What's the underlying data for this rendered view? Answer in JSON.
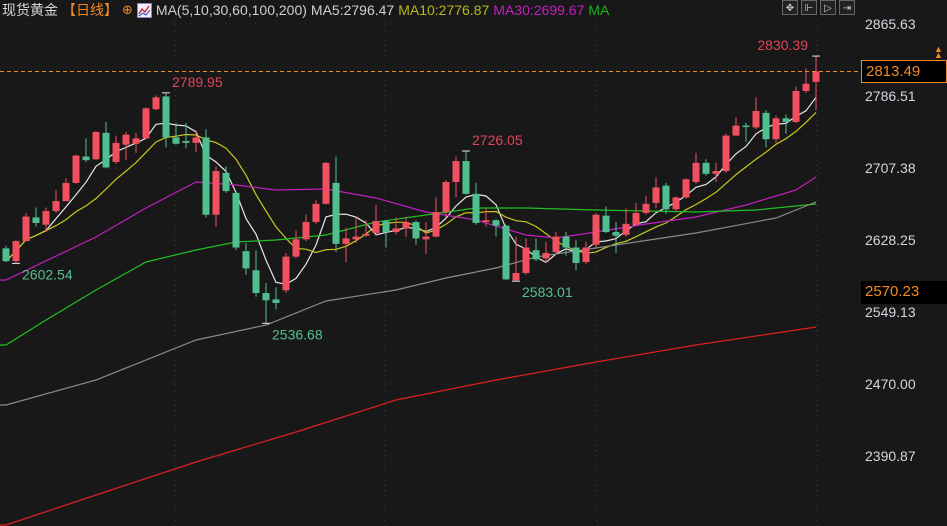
{
  "header": {
    "instrument": "现货黄金",
    "period": "【日线】",
    "add_icon": "circle-plus-icon",
    "ma_icon": "line-chart-icon",
    "ma_params": "MA(5,10,30,60,100,200)",
    "ma5": "MA5:2796.47",
    "ma10": "MA10:2776.87",
    "ma30": "MA30:2699.67",
    "ma60": "MA"
  },
  "toolbar": [
    {
      "icon": "crosshair-icon",
      "glyph": "✥"
    },
    {
      "icon": "zoom-range-icon",
      "glyph": "⊩"
    },
    {
      "icon": "play-icon",
      "glyph": "▷"
    },
    {
      "icon": "move-right-icon",
      "glyph": "⇥"
    }
  ],
  "price_labels": {
    "current": "2813.49",
    "secondary": "2570.23"
  },
  "colors": {
    "background": "#181818",
    "up": "#f0505f",
    "down": "#4fbf8f",
    "ma5": "#e6e6e6",
    "ma10": "#c8c820",
    "ma30": "#c020c0",
    "ma60": "#20c020",
    "ma100": "#8a8a8a",
    "ma200": "#e02020",
    "current_line": "#f08a24"
  },
  "chart_data": {
    "type": "candlestick",
    "title": "",
    "y_ticks": [
      2865.63,
      2786.51,
      2707.38,
      2628.25,
      2549.13,
      2470.0,
      2390.87
    ],
    "ylim": [
      2390.87,
      2865.63
    ],
    "grid": true,
    "current_price": 2813.49,
    "secondary_price": 2570.23,
    "candles": [
      [
        2619,
        2622,
        2604,
        2605
      ],
      [
        2605,
        2628,
        2602.54,
        2627
      ],
      [
        2627,
        2658,
        2627,
        2654
      ],
      [
        2653,
        2664,
        2643,
        2647
      ],
      [
        2645,
        2664,
        2637,
        2660
      ],
      [
        2660,
        2683,
        2658,
        2671
      ],
      [
        2671,
        2696,
        2671,
        2691
      ],
      [
        2691,
        2722,
        2690,
        2721
      ],
      [
        2720,
        2740,
        2714,
        2716
      ],
      [
        2717,
        2748,
        2716,
        2747
      ],
      [
        2746,
        2758,
        2707,
        2708
      ],
      [
        2714,
        2743,
        2712,
        2735
      ],
      [
        2733,
        2747,
        2716,
        2744
      ],
      [
        2734,
        2746,
        2724,
        2740
      ],
      [
        2740,
        2774,
        2739,
        2773
      ],
      [
        2772,
        2787,
        2771,
        2785
      ],
      [
        2786,
        2789.95,
        2730,
        2741
      ],
      [
        2741,
        2757,
        2733,
        2734
      ],
      [
        2737,
        2757,
        2729,
        2735
      ],
      [
        2735,
        2749,
        2725,
        2741
      ],
      [
        2741,
        2750,
        2653,
        2656
      ],
      [
        2656,
        2709,
        2643,
        2704
      ],
      [
        2702,
        2709,
        2680,
        2682
      ],
      [
        2680,
        2680,
        2617,
        2620
      ],
      [
        2616,
        2625,
        2590,
        2597
      ],
      [
        2595,
        2617,
        2566,
        2570
      ],
      [
        2570,
        2581,
        2536.68,
        2562
      ],
      [
        2563,
        2576,
        2552,
        2559
      ],
      [
        2573,
        2614,
        2570,
        2610
      ],
      [
        2610,
        2639,
        2608,
        2629
      ],
      [
        2629,
        2656,
        2627,
        2648
      ],
      [
        2648,
        2672,
        2646,
        2668
      ],
      [
        2668,
        2714,
        2667,
        2713
      ],
      [
        2691,
        2720,
        2615,
        2624
      ],
      [
        2624,
        2642,
        2604,
        2630
      ],
      [
        2629,
        2653,
        2625,
        2632
      ],
      [
        2633,
        2650,
        2632,
        2635
      ],
      [
        2636,
        2667,
        2634,
        2649
      ],
      [
        2649,
        2650,
        2620,
        2637
      ],
      [
        2637,
        2653,
        2634,
        2641
      ],
      [
        2641,
        2654,
        2632,
        2648
      ],
      [
        2648,
        2650,
        2623,
        2630
      ],
      [
        2629,
        2648,
        2613,
        2632
      ],
      [
        2632,
        2675,
        2631,
        2659
      ],
      [
        2659,
        2694,
        2653,
        2692
      ],
      [
        2692,
        2720,
        2675,
        2715
      ],
      [
        2715,
        2726.05,
        2678,
        2679
      ],
      [
        2679,
        2691,
        2645,
        2647
      ],
      [
        2648,
        2663,
        2643,
        2650
      ],
      [
        2650,
        2651,
        2632,
        2644
      ],
      [
        2644,
        2645,
        2584,
        2585
      ],
      [
        2584,
        2632,
        2583.01,
        2592
      ],
      [
        2592,
        2630,
        2590,
        2620
      ],
      [
        2617,
        2630,
        2605,
        2607
      ],
      [
        2608,
        2626,
        2603,
        2614
      ],
      [
        2615,
        2637,
        2613,
        2632
      ],
      [
        2632,
        2637,
        2611,
        2620
      ],
      [
        2620,
        2628,
        2595,
        2603
      ],
      [
        2604,
        2626,
        2602,
        2620
      ],
      [
        2623,
        2658,
        2620,
        2656
      ],
      [
        2655,
        2665,
        2636,
        2637
      ],
      [
        2637,
        2648,
        2614,
        2633
      ],
      [
        2634,
        2663,
        2632,
        2646
      ],
      [
        2645,
        2669,
        2644,
        2658
      ],
      [
        2658,
        2677,
        2656,
        2668
      ],
      [
        2669,
        2697,
        2663,
        2686
      ],
      [
        2688,
        2691,
        2657,
        2662
      ],
      [
        2662,
        2676,
        2660,
        2675
      ],
      [
        2675,
        2696,
        2674,
        2695
      ],
      [
        2692,
        2724,
        2690,
        2713
      ],
      [
        2713,
        2717,
        2699,
        2701
      ],
      [
        2701,
        2713,
        2692,
        2704
      ],
      [
        2704,
        2745,
        2702,
        2743
      ],
      [
        2743,
        2763,
        2742,
        2754
      ],
      [
        2754,
        2757,
        2736,
        2753
      ],
      [
        2752,
        2785,
        2750,
        2770
      ],
      [
        2768,
        2771,
        2730,
        2739
      ],
      [
        2739,
        2765,
        2735,
        2762
      ],
      [
        2762,
        2766,
        2745,
        2758
      ],
      [
        2758,
        2797,
        2757,
        2792
      ],
      [
        2792,
        2817,
        2790,
        2800
      ],
      [
        2802,
        2830.39,
        2771,
        2813.49
      ]
    ],
    "moving_averages": [
      {
        "name": "MA5",
        "period": 5
      },
      {
        "name": "MA10",
        "period": 10
      },
      {
        "name": "MA30",
        "points": [
          [
            0,
            2584.3
          ],
          [
            9,
            2631.5
          ],
          [
            14,
            2663.4
          ],
          [
            19,
            2692.0
          ],
          [
            23,
            2688.7
          ],
          [
            27,
            2683.2
          ],
          [
            32,
            2684.3
          ],
          [
            37,
            2674.4
          ],
          [
            42,
            2659.0
          ],
          [
            47,
            2650.2
          ],
          [
            52,
            2633.7
          ],
          [
            55,
            2630.4
          ],
          [
            59,
            2637.0
          ],
          [
            64,
            2645.8
          ],
          [
            69,
            2653.5
          ],
          [
            74,
            2666.7
          ],
          [
            79,
            2683.2
          ],
          [
            81,
            2697.5
          ]
        ]
      },
      {
        "name": "MA60",
        "points": [
          [
            0,
            2512.9
          ],
          [
            4,
            2540.3
          ],
          [
            9,
            2573.3
          ],
          [
            14,
            2604.1
          ],
          [
            19,
            2617.3
          ],
          [
            23,
            2626.1
          ],
          [
            27,
            2628.3
          ],
          [
            32,
            2633.7
          ],
          [
            37,
            2648.0
          ],
          [
            42,
            2655.7
          ],
          [
            47,
            2663.4
          ],
          [
            52,
            2663.4
          ],
          [
            59,
            2661.2
          ],
          [
            69,
            2659.0
          ],
          [
            75,
            2661.2
          ],
          [
            81,
            2667.8
          ]
        ]
      },
      {
        "name": "MA100",
        "points": [
          [
            0,
            2446.9
          ],
          [
            9,
            2474.4
          ],
          [
            19,
            2518.4
          ],
          [
            26,
            2534.8
          ],
          [
            32,
            2561.2
          ],
          [
            39,
            2573.3
          ],
          [
            44,
            2586.5
          ],
          [
            49,
            2597.5
          ],
          [
            53,
            2609.6
          ],
          [
            59,
            2619.5
          ],
          [
            69,
            2635.9
          ],
          [
            77,
            2652.4
          ],
          [
            81,
            2670.0
          ]
        ]
      },
      {
        "name": "MA200",
        "points": [
          [
            0,
            2315.0
          ],
          [
            9,
            2348.0
          ],
          [
            19,
            2384.3
          ],
          [
            29,
            2417.2
          ],
          [
            39,
            2452.4
          ],
          [
            49,
            2474.4
          ],
          [
            59,
            2494.2
          ],
          [
            69,
            2512.9
          ],
          [
            81,
            2532.6
          ]
        ]
      }
    ],
    "annotations": [
      {
        "text": "2830.39",
        "index": 81,
        "kind": "high"
      },
      {
        "text": "2789.95",
        "index": 16,
        "kind": "high"
      },
      {
        "text": "2726.05",
        "index": 46,
        "kind": "high"
      },
      {
        "text": "2602.54",
        "index": 1,
        "kind": "low"
      },
      {
        "text": "2536.68",
        "index": 26,
        "kind": "low"
      },
      {
        "text": "2583.01",
        "index": 51,
        "kind": "low"
      }
    ]
  }
}
